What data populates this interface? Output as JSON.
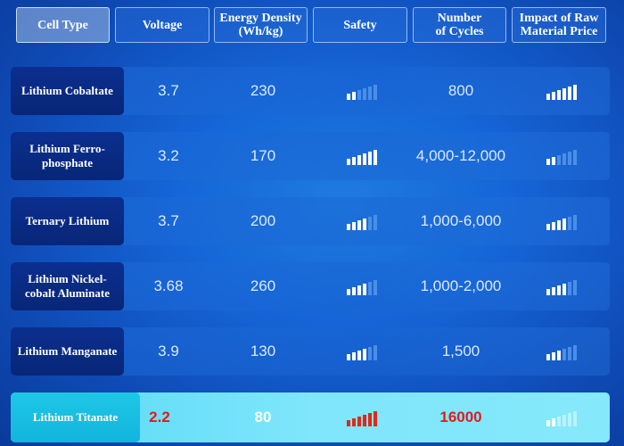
{
  "header": {
    "columns": [
      "Cell Type",
      "Voltage",
      "Energy Density\n(Wh/kg)",
      "Safety",
      "Number\nof Cycles",
      "Impact of Raw\nMaterial Price"
    ]
  },
  "rows": [
    {
      "cell_type": "Lithium Cobaltate",
      "voltage": "3.7",
      "energy_density": "230",
      "safety_level": 2,
      "cycles": "800",
      "price_impact_level": 6
    },
    {
      "cell_type": "Lithium Ferro-\nphosphate",
      "voltage": "3.2",
      "energy_density": "170",
      "safety_level": 6,
      "cycles": "4,000-12,000",
      "price_impact_level": 2
    },
    {
      "cell_type": "Ternary Lithium",
      "voltage": "3.7",
      "energy_density": "200",
      "safety_level": 4,
      "cycles": "1,000-6,000",
      "price_impact_level": 4
    },
    {
      "cell_type": "Lithium Nickel-\ncobalt Aluminate",
      "voltage": "3.68",
      "energy_density": "260",
      "safety_level": 4,
      "cycles": "1,000-2,000",
      "price_impact_level": 4
    },
    {
      "cell_type": "Lithium Manganate",
      "voltage": "3.9",
      "energy_density": "130",
      "safety_level": 4,
      "cycles": "1,500",
      "price_impact_level": 3
    },
    {
      "cell_type": "Lithium Titanate",
      "voltage": "2.2",
      "energy_density": "80",
      "safety_level": 6,
      "cycles": "16000",
      "price_impact_level": 2
    }
  ],
  "bar_scale_max": 6,
  "colors": {
    "bar_active": "#ffffff",
    "bar_inactive": "#4a8ee6",
    "bar_active_highlight_safety": "#e0281e",
    "bar_inactive_highlight": "#ffffff",
    "highlight_value_red": "#e01c1c"
  }
}
